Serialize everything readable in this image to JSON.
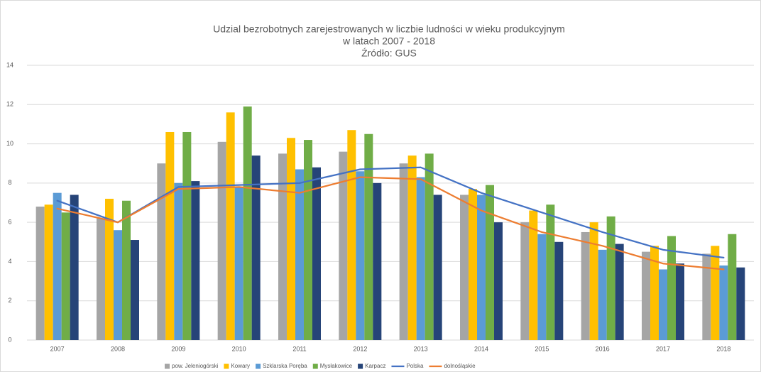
{
  "chart_data": {
    "type": "bar",
    "title": [
      "Udzial bezrobotnych zarejestrowanych w liczbie ludności w wieku produkcyjnym",
      "w latach 2007 - 2018",
      "Źródło: GUS"
    ],
    "categories": [
      "2007",
      "2008",
      "2009",
      "2010",
      "2011",
      "2012",
      "2013",
      "2014",
      "2015",
      "2016",
      "2017",
      "2018"
    ],
    "series": [
      {
        "name": "pow. Jeleniogórski",
        "type": "bar",
        "color": "#a5a5a5",
        "values": [
          6.8,
          6.2,
          9.0,
          10.1,
          9.5,
          9.6,
          9.0,
          7.4,
          6.0,
          5.5,
          4.5,
          4.4
        ]
      },
      {
        "name": "Kowary",
        "type": "bar",
        "color": "#ffc000",
        "values": [
          6.9,
          7.2,
          10.6,
          11.6,
          10.3,
          10.7,
          9.4,
          7.7,
          6.6,
          6.0,
          4.8,
          4.8
        ]
      },
      {
        "name": "Szklarska Poręba",
        "type": "bar",
        "color": "#5b9bd5",
        "values": [
          7.5,
          5.6,
          8.0,
          7.8,
          8.7,
          8.6,
          8.3,
          7.4,
          5.4,
          4.6,
          3.6,
          3.8
        ]
      },
      {
        "name": "Mysłakowice",
        "type": "bar",
        "color": "#70ad47",
        "values": [
          6.5,
          7.1,
          10.6,
          11.9,
          10.2,
          10.5,
          9.5,
          7.9,
          6.9,
          6.3,
          5.3,
          5.4
        ]
      },
      {
        "name": "Karpacz",
        "type": "bar",
        "color": "#264478",
        "values": [
          7.4,
          5.1,
          8.1,
          9.4,
          8.8,
          8.0,
          7.4,
          6.0,
          5.0,
          4.9,
          3.9,
          3.7
        ]
      },
      {
        "name": "Polska",
        "type": "line",
        "color": "#4472c4",
        "values": [
          7.1,
          6.0,
          7.8,
          7.9,
          8.0,
          8.7,
          8.8,
          7.5,
          6.5,
          5.5,
          4.6,
          4.2
        ]
      },
      {
        "name": "dolnośląskie",
        "type": "line",
        "color": "#ed7d31",
        "values": [
          6.7,
          6.0,
          7.7,
          7.8,
          7.5,
          8.3,
          8.2,
          6.6,
          5.5,
          4.8,
          3.9,
          3.6
        ]
      }
    ],
    "ylim": [
      0,
      14
    ],
    "yticks": [
      0,
      2,
      4,
      6,
      8,
      10,
      12,
      14
    ],
    "grid": true,
    "legend": "bottom"
  }
}
